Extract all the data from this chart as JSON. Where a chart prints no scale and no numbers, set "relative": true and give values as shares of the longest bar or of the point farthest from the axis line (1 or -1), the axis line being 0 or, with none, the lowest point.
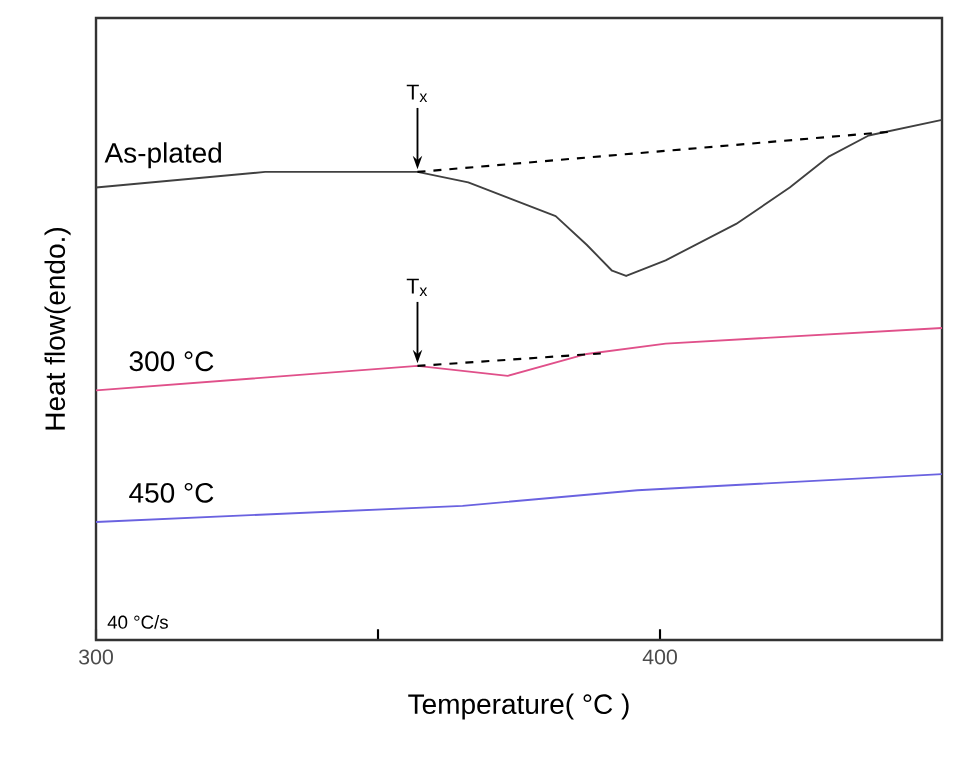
{
  "chart_data": {
    "type": "line",
    "xlabel": "Temperature( °C )",
    "ylabel": "Heat flow(endo.)",
    "relative": true,
    "xlim": [
      300,
      450
    ],
    "xticks": [
      300,
      {
        "value": 350,
        "label": null
      },
      400
    ],
    "tick_labels": "x",
    "marker": "none",
    "series": [
      {
        "name": "As-plated",
        "color": "#404040",
        "x": [
          300,
          330,
          357,
          366,
          381.5,
          387,
          391.5,
          394,
          401,
          413.5,
          423,
          430,
          437,
          450
        ],
        "values": [
          0.87,
          0.9,
          0.9,
          0.88,
          0.815,
          0.76,
          0.71,
          0.7,
          0.73,
          0.8,
          0.87,
          0.93,
          0.97,
          1.0
        ]
      },
      {
        "color": "#000000",
        "line_style": "dashed",
        "x": [
          357,
          440.5
        ],
        "values": [
          0.9,
          0.977
        ]
      },
      {
        "name": "300 °C",
        "color": "#e0508a",
        "x": [
          300,
          357,
          373,
          387,
          401,
          450
        ],
        "values": [
          0.48,
          0.527,
          0.508,
          0.55,
          0.57,
          0.6
        ]
      },
      {
        "color": "#000000",
        "line_style": "dashed",
        "x": [
          357,
          389.5
        ],
        "values": [
          0.527,
          0.551
        ]
      },
      {
        "name": "450 °C",
        "color": "#6a62e0",
        "x": [
          300,
          365,
          396,
          450
        ],
        "values": [
          0.227,
          0.258,
          0.288,
          0.319
        ]
      }
    ],
    "annotations": [
      {
        "text": "T$_{x}$",
        "x": 357,
        "y": 0.9
      },
      {
        "text": "T$_{x}$",
        "x": 357,
        "y": 0.527
      },
      "40 °C/s"
    ]
  }
}
